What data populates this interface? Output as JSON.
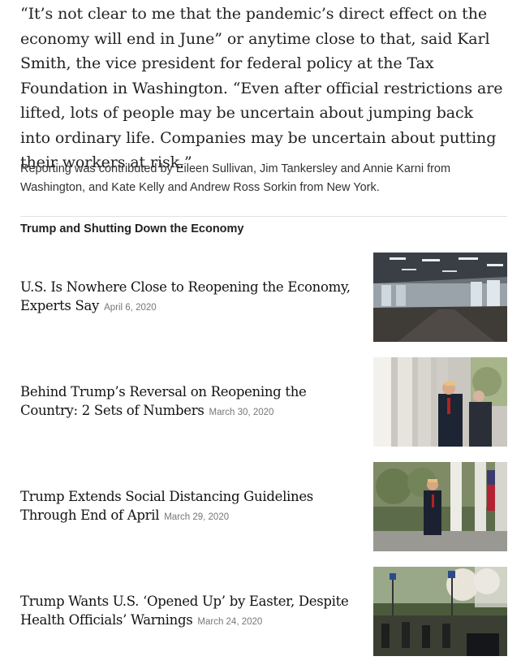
{
  "article": {
    "quote": "“It’s not clear to me that the pandemic’s direct effect on the economy will end in June” or anytime close to that, said Karl Smith, the vice president for federal policy at the Tax Foundation in Washington. “Even after official restrictions are lifted, lots of people may be uncertain about jumping back into ordinary life. Companies may be uncertain about putting their workers at risk.”",
    "credits": "Reporting was contributed by Eileen Sullivan, Jim Tankersley and Annie Karni from Washington, and Kate Kelly and Andrew Ross Sorkin from New York."
  },
  "related": {
    "title": "Trump and Shutting Down the Economy",
    "stories": [
      {
        "headline": "U.S. Is Nowhere Close to Reopening the Economy, Experts Say",
        "date": "April 6, 2020",
        "image_icon": "empty-office-photo"
      },
      {
        "headline": "Behind Trump’s Reversal on Reopening the Country: 2 Sets of Numbers",
        "date": "March 30, 2020",
        "image_icon": "colonnade-walk-photo"
      },
      {
        "headline": "Trump Extends Social Distancing Guidelines Through End of April",
        "date": "March 29, 2020",
        "image_icon": "rose-garden-walk-photo"
      },
      {
        "headline": "Trump Wants U.S. ‘Opened Up’ by Easter, Despite Health Officials’ Warnings",
        "date": "March 24, 2020",
        "image_icon": "rose-garden-event-photo"
      }
    ]
  }
}
